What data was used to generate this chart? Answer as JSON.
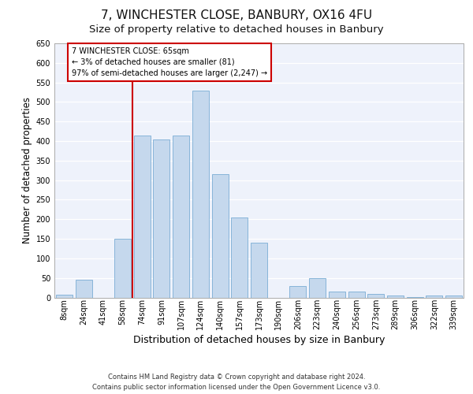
{
  "title1": "7, WINCHESTER CLOSE, BANBURY, OX16 4FU",
  "title2": "Size of property relative to detached houses in Banbury",
  "xlabel": "Distribution of detached houses by size in Banbury",
  "ylabel": "Number of detached properties",
  "footnote1": "Contains HM Land Registry data © Crown copyright and database right 2024.",
  "footnote2": "Contains public sector information licensed under the Open Government Licence v3.0.",
  "annotation_line1": "7 WINCHESTER CLOSE: 65sqm",
  "annotation_line2": "← 3% of detached houses are smaller (81)",
  "annotation_line3": "97% of semi-detached houses are larger (2,247) →",
  "bar_color": "#c5d8ed",
  "bar_edge_color": "#7aadd4",
  "line_color": "#cc0000",
  "background_color": "#eef2fb",
  "grid_color": "#ffffff",
  "categories": [
    "8sqm",
    "24sqm",
    "41sqm",
    "58sqm",
    "74sqm",
    "91sqm",
    "107sqm",
    "124sqm",
    "140sqm",
    "157sqm",
    "173sqm",
    "190sqm",
    "206sqm",
    "223sqm",
    "240sqm",
    "256sqm",
    "273sqm",
    "289sqm",
    "306sqm",
    "322sqm",
    "339sqm"
  ],
  "values": [
    8,
    45,
    0,
    150,
    415,
    405,
    415,
    530,
    315,
    205,
    140,
    0,
    30,
    50,
    15,
    15,
    10,
    5,
    2,
    5,
    5
  ],
  "ylim": [
    0,
    650
  ],
  "yticks": [
    0,
    50,
    100,
    150,
    200,
    250,
    300,
    350,
    400,
    450,
    500,
    550,
    600,
    650
  ],
  "vline_x": 3.5,
  "title_fontsize": 11,
  "subtitle_fontsize": 9.5,
  "tick_fontsize": 7,
  "ylabel_fontsize": 8.5,
  "xlabel_fontsize": 9,
  "footnote_fontsize": 6
}
